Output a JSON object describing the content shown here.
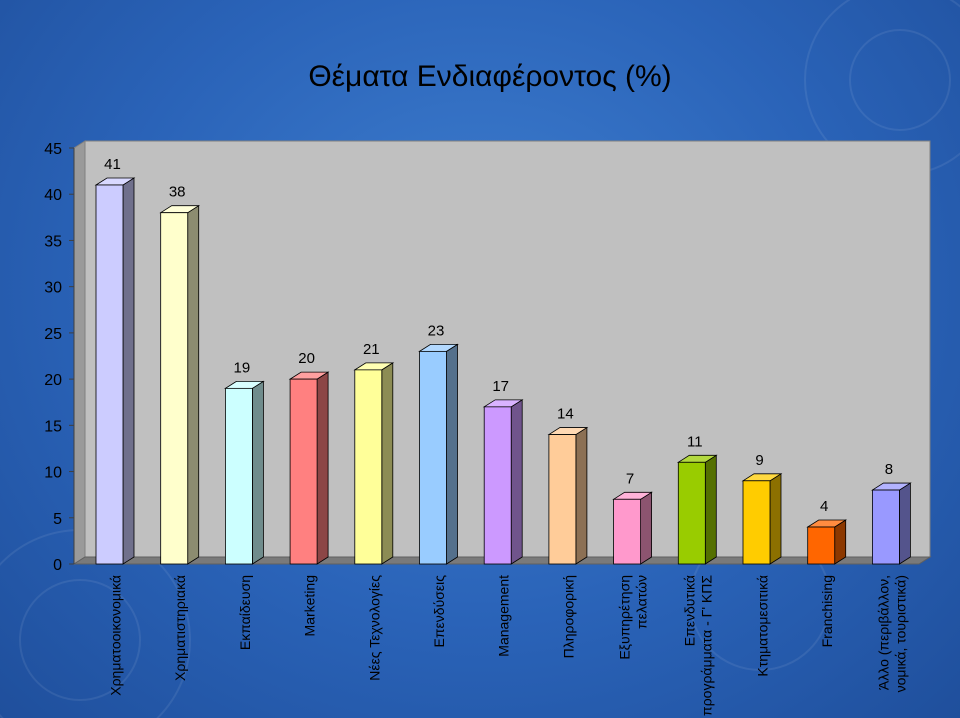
{
  "chart_data": {
    "type": "bar",
    "title": "Θέματα Ενδιαφέροντος (%)",
    "categories": [
      [
        "Χρηματοοικονομικά"
      ],
      [
        "Χρηματιστηριακά"
      ],
      [
        "Εκπαίδευση"
      ],
      [
        "Marketing"
      ],
      [
        "Νέες Τεχνολογίες"
      ],
      [
        "Επενδύσεις"
      ],
      [
        "Management"
      ],
      [
        "Πληροφορική"
      ],
      [
        "Εξυπηρέτηση",
        "πελατών"
      ],
      [
        "Επενδυτικά",
        "προγράμματα - Γ' ΚΠΣ"
      ],
      [
        "Κτηματομεσιτικά"
      ],
      [
        "Franchising"
      ],
      [
        "Άλλο (περιβάλλον,",
        "νομικά, τουριστικά)"
      ]
    ],
    "values": [
      41,
      38,
      19,
      20,
      21,
      23,
      17,
      14,
      7,
      11,
      9,
      4,
      8
    ],
    "colors": [
      "#ccccff",
      "#ffffcc",
      "#ccffff",
      "#ff8080",
      "#ffff99",
      "#99ccff",
      "#cc99ff",
      "#ffcc99",
      "#ff99cc",
      "#99cc00",
      "#ffcc00",
      "#ff6600",
      "#9999ff"
    ],
    "ylim": [
      0,
      45
    ],
    "yticks": [
      0,
      5,
      10,
      15,
      20,
      25,
      30,
      35,
      40,
      45
    ],
    "xlabel": "",
    "ylabel": "",
    "grid": false,
    "legend": "none"
  }
}
